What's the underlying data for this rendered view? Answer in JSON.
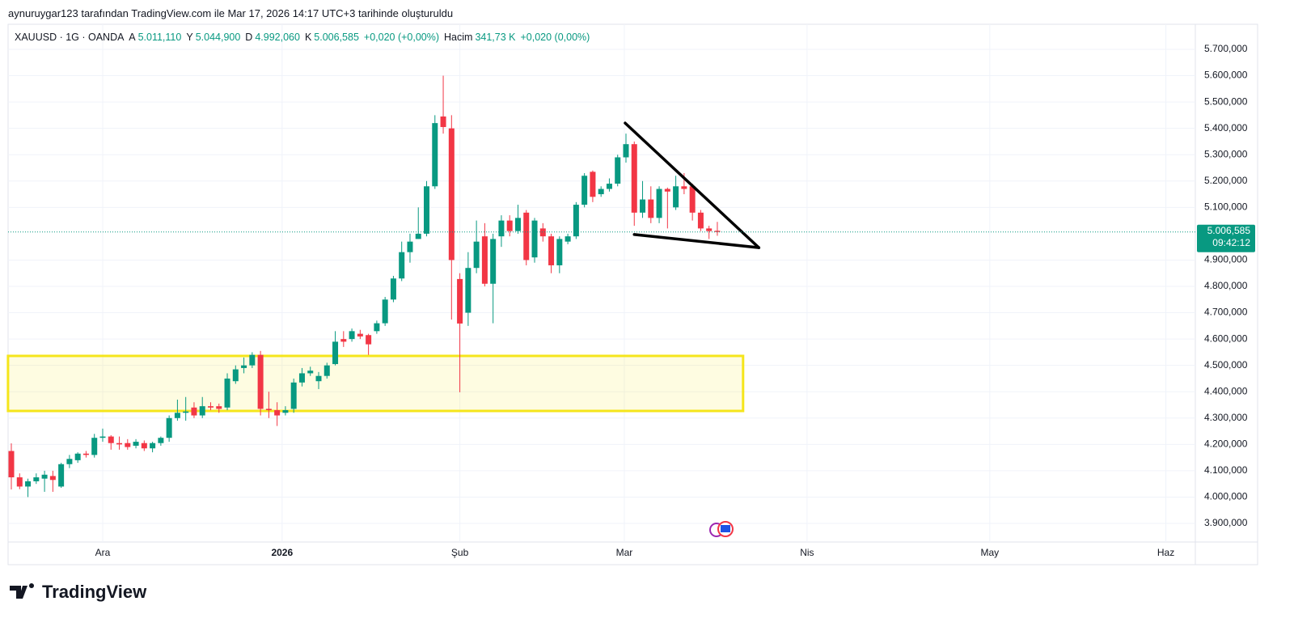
{
  "header": {
    "credit": "aynuruygar123 tarafından TradingView.com ile Mar 17, 2026 14:17 UTC+3 tarihinde oluşturuldu"
  },
  "legend": {
    "symbol": "XAUUSD · 1G · OANDA",
    "ohlc": [
      {
        "key": "A",
        "value": "5.011,110"
      },
      {
        "key": "Y",
        "value": "5.044,900"
      },
      {
        "key": "D",
        "value": "4.992,060"
      },
      {
        "key": "K",
        "value": "5.006,585"
      }
    ],
    "change": "+0,020 (+0,00%)",
    "volume_label": "Hacim",
    "volume": "341,73 K",
    "volume_change": "+0,020 (0,00%)"
  },
  "footer": {
    "brand": "TradingView"
  },
  "chart_data": {
    "type": "candlestick",
    "up_color": "#089981",
    "down_color": "#f23645",
    "grid": true,
    "open": [
      4175,
      4075,
      4040,
      4060,
      4070,
      4080,
      4040,
      4125,
      4140,
      4165,
      4160,
      4225,
      4230,
      4205,
      4205,
      4195,
      4205,
      4185,
      4205,
      4225,
      4300,
      4320,
      4340,
      4310,
      4345,
      4345,
      4340,
      4440,
      4490,
      4500,
      4540,
      4335,
      4330,
      4320,
      4335,
      4435,
      4470,
      4440,
      4460,
      4505,
      4600,
      4600,
      4620,
      4615,
      4630,
      4660,
      4750,
      4830,
      4930,
      4980,
      5000,
      5180,
      5445,
      5400,
      4828,
      4700,
      4870,
      4990,
      4810,
      4990,
      5050,
      5010,
      5080,
      4910,
      5020,
      4990,
      4880,
      4970,
      4990,
      5110,
      5235,
      5150,
      5170,
      5190,
      5290,
      5340,
      5080,
      5130,
      5060,
      5170,
      5100,
      5180,
      5180,
      5080,
      5020,
      5011.11
    ],
    "high": [
      4204,
      4090,
      4070,
      4090,
      4100,
      4100,
      4130,
      4160,
      4170,
      4175,
      4240,
      4260,
      4235,
      4230,
      4220,
      4220,
      4215,
      4210,
      4230,
      4310,
      4370,
      4380,
      4360,
      4380,
      4360,
      4355,
      4470,
      4500,
      4530,
      4550,
      4555,
      4400,
      4360,
      4345,
      4450,
      4490,
      4495,
      4475,
      4510,
      4630,
      4630,
      4640,
      4635,
      4620,
      4670,
      4760,
      4840,
      4970,
      5000,
      5100,
      5200,
      5450,
      5600,
      5450,
      4850,
      4930,
      5050,
      5040,
      5000,
      5070,
      5070,
      5110,
      5090,
      5060,
      5040,
      5000,
      4990,
      5000,
      5120,
      5230,
      5240,
      5180,
      5210,
      5300,
      5380,
      5350,
      5200,
      5180,
      5180,
      5175,
      5220,
      5230,
      5190,
      5090,
      5030,
      5044.9
    ],
    "low": [
      4029,
      4030,
      4000,
      4050,
      4020,
      4020,
      4035,
      4110,
      4130,
      4150,
      4150,
      4210,
      4180,
      4180,
      4180,
      4185,
      4175,
      4170,
      4195,
      4210,
      4290,
      4290,
      4300,
      4300,
      4330,
      4320,
      4330,
      4430,
      4470,
      4490,
      4310,
      4300,
      4270,
      4310,
      4320,
      4420,
      4460,
      4410,
      4450,
      4500,
      4570,
      4590,
      4600,
      4540,
      4620,
      4650,
      4740,
      4820,
      4890,
      4980,
      4990,
      5170,
      5380,
      4674,
      4398,
      4650,
      4850,
      4800,
      4660,
      4950,
      4990,
      5000,
      4880,
      4890,
      4970,
      4850,
      4850,
      4960,
      4980,
      5100,
      5120,
      5140,
      5160,
      5180,
      5270,
      5030,
      5060,
      5040,
      5040,
      5020,
      5090,
      5150,
      5050,
      5010,
      4980,
      4992.06
    ],
    "close": [
      4075,
      4040,
      4060,
      4075,
      4085,
      4065,
      4125,
      4145,
      4165,
      4160,
      4225,
      4230,
      4205,
      4200,
      4190,
      4210,
      4185,
      4205,
      4225,
      4300,
      4320,
      4325,
      4310,
      4345,
      4340,
      4335,
      4450,
      4485,
      4500,
      4540,
      4335,
      4330,
      4310,
      4330,
      4435,
      4470,
      4480,
      4460,
      4500,
      4590,
      4590,
      4630,
      4610,
      4580,
      4660,
      4750,
      4830,
      4930,
      4970,
      5000,
      5180,
      5420,
      5405,
      4900,
      4659,
      4870,
      4970,
      4810,
      4980,
      5050,
      5010,
      5060,
      4900,
      5050,
      4990,
      4880,
      4980,
      4990,
      5110,
      5220,
      5140,
      5170,
      5190,
      5290,
      5340,
      5080,
      5130,
      5060,
      5170,
      5160,
      5180,
      5170,
      5080,
      5020,
      5010,
      5006.585
    ],
    "xlim": [
      -0.39,
      142.55
    ],
    "xticks": [
      {
        "value": 11,
        "label": "Ara"
      },
      {
        "value": 32.6,
        "label": "2026",
        "bold": true
      },
      {
        "value": 54,
        "label": "Şub"
      },
      {
        "value": 73.8,
        "label": "Mar"
      },
      {
        "value": 95.8,
        "label": "Nis"
      },
      {
        "value": 117.8,
        "label": "May"
      },
      {
        "value": 139,
        "label": "Haz"
      }
    ],
    "ylim": [
      3829.4,
      5795.2
    ],
    "yticks": [
      {
        "value": 3900,
        "label": "3.900,000"
      },
      {
        "value": 4000,
        "label": "4.000,000"
      },
      {
        "value": 4100,
        "label": "4.100,000"
      },
      {
        "value": 4200,
        "label": "4.200,000"
      },
      {
        "value": 4300,
        "label": "4.300,000"
      },
      {
        "value": 4400,
        "label": "4.400,000"
      },
      {
        "value": 4500,
        "label": "4.500,000"
      },
      {
        "value": 4600,
        "label": "4.600,000"
      },
      {
        "value": 4700,
        "label": "4.700,000"
      },
      {
        "value": 4800,
        "label": "4.800,000"
      },
      {
        "value": 4900,
        "label": "4.900,000"
      },
      {
        "value": 5100,
        "label": "5.100,000"
      },
      {
        "value": 5200,
        "label": "5.200,000"
      },
      {
        "value": 5300,
        "label": "5.300,000"
      },
      {
        "value": 5400,
        "label": "5.400,000"
      },
      {
        "value": 5500,
        "label": "5.500,000"
      },
      {
        "value": 5600,
        "label": "5.600,000"
      },
      {
        "value": 5700,
        "label": "5.700,000"
      }
    ],
    "last_price": {
      "value": 5006.585,
      "label": "5.006,585",
      "countdown": "09:42:12"
    },
    "zone": {
      "x": [
        -0.4,
        88.1
      ],
      "y": [
        4327,
        4536
      ],
      "color": "#f5e51b"
    },
    "trendlines": [
      [
        [
          73.9,
          5420
        ],
        [
          90,
          4947
        ]
      ],
      [
        [
          75,
          4997
        ],
        [
          90,
          4947
        ]
      ]
    ]
  }
}
